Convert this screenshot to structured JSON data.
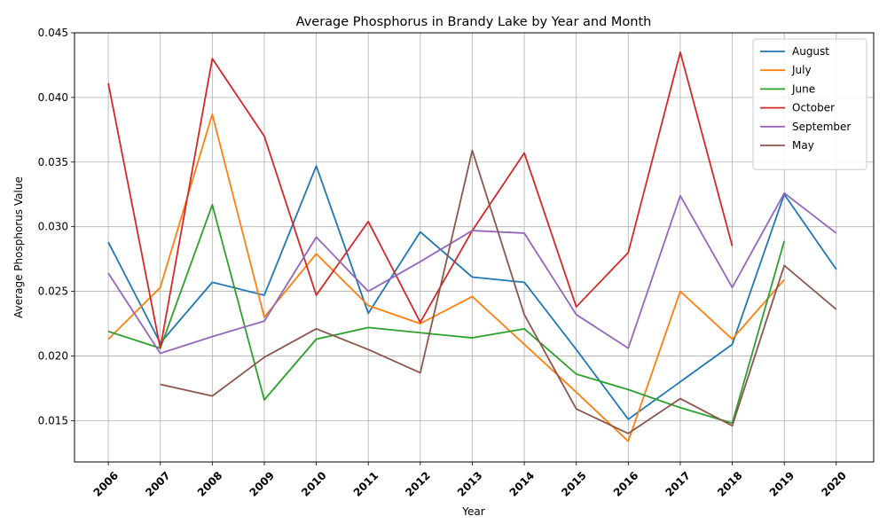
{
  "chart_data": {
    "type": "line",
    "title": "Average Phosphorus in Brandy Lake by Year and Month",
    "xlabel": "Year",
    "ylabel": "Average Phosphorus Value",
    "x": [
      2006,
      2007,
      2008,
      2009,
      2010,
      2011,
      2012,
      2013,
      2014,
      2015,
      2016,
      2017,
      2018,
      2019,
      2020
    ],
    "x_tick_labels": [
      "2006",
      "2007",
      "2008",
      "2009",
      "2010",
      "2011",
      "2012",
      "2013",
      "2014",
      "2015",
      "2016",
      "2017",
      "2018",
      "2019",
      "2020"
    ],
    "ylim": [
      0.0118,
      0.045
    ],
    "y_ticks": [
      0.015,
      0.02,
      0.025,
      0.03,
      0.035,
      0.04,
      0.045
    ],
    "y_tick_labels": [
      "0.015",
      "0.020",
      "0.025",
      "0.030",
      "0.035",
      "0.040",
      "0.045"
    ],
    "grid": true,
    "legend_position": "top-right",
    "series": [
      {
        "name": "August",
        "color": "#1f77b4",
        "values": [
          0.0288,
          0.021,
          0.0257,
          0.0247,
          0.0347,
          0.0233,
          0.0296,
          0.0261,
          0.0257,
          0.0205,
          0.0151,
          0.018,
          0.0209,
          0.0325,
          0.0267
        ]
      },
      {
        "name": "July",
        "color": "#ff7f0e",
        "values": [
          0.0213,
          0.0253,
          0.0387,
          0.023,
          0.0279,
          0.0239,
          0.0225,
          0.0246,
          0.0209,
          0.0172,
          0.0134,
          0.025,
          0.0213,
          0.0259,
          null
        ]
      },
      {
        "name": "June",
        "color": "#2ca02c",
        "values": [
          0.0219,
          0.0206,
          0.0317,
          0.0166,
          0.0213,
          0.0222,
          0.0218,
          0.0214,
          0.0221,
          0.0186,
          0.0174,
          0.016,
          0.0148,
          0.0289,
          null
        ]
      },
      {
        "name": "October",
        "color": "#d62728",
        "values": [
          0.0411,
          0.0206,
          0.043,
          0.037,
          0.0247,
          0.0304,
          0.0226,
          0.0297,
          0.0357,
          0.0238,
          0.028,
          0.0435,
          0.0285,
          null,
          null
        ]
      },
      {
        "name": "September",
        "color": "#9467bd",
        "values": [
          0.0264,
          0.0202,
          0.0215,
          0.0227,
          0.0292,
          0.025,
          0.0273,
          0.0297,
          0.0295,
          0.0232,
          0.0206,
          0.0324,
          0.0253,
          0.0326,
          0.0295
        ]
      },
      {
        "name": "May",
        "color": "#8c564b",
        "values": [
          null,
          0.0178,
          0.0169,
          0.0199,
          0.0221,
          0.0205,
          0.0187,
          0.0359,
          0.0232,
          0.0159,
          0.014,
          0.0167,
          0.0146,
          0.027,
          0.0236
        ]
      }
    ]
  }
}
